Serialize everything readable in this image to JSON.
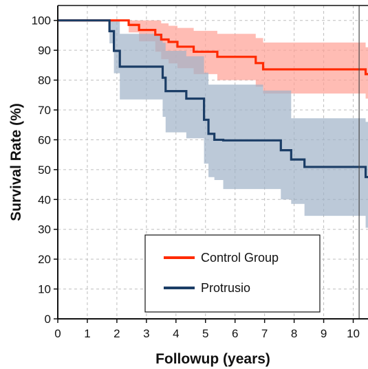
{
  "chart_data": {
    "type": "line",
    "subtype": "kaplan-meier step curves with confidence bands",
    "title": "",
    "xlabel": "Followup (years)",
    "ylabel": "Survival Rate (%)",
    "xlim": [
      0,
      10.5
    ],
    "ylim": [
      0,
      105
    ],
    "xticks": [
      0,
      1,
      2,
      3,
      4,
      5,
      6,
      7,
      8,
      9,
      10
    ],
    "yticks": [
      0,
      10,
      20,
      30,
      40,
      50,
      60,
      70,
      80,
      90,
      100
    ],
    "grid": true,
    "vertical_reference_line_x": 10.2,
    "legend_position": "bottom-center",
    "series": [
      {
        "name": "Control Group",
        "color": "#ff2a00",
        "band_color": "#ff9f94",
        "points": [
          [
            0,
            100
          ],
          [
            1.85,
            100
          ],
          [
            2.4,
            98.5
          ],
          [
            2.75,
            96.8
          ],
          [
            3.3,
            95.2
          ],
          [
            3.5,
            93.6
          ],
          [
            3.75,
            92.8
          ],
          [
            4.05,
            91.2
          ],
          [
            4.6,
            89.5
          ],
          [
            5.4,
            87.8
          ],
          [
            6.7,
            85.7
          ],
          [
            6.95,
            83.6
          ],
          [
            10.4,
            83.6
          ],
          [
            10.42,
            82
          ],
          [
            10.5,
            82
          ]
        ],
        "band_upper": [
          [
            0,
            100
          ],
          [
            1.85,
            100
          ],
          [
            2.4,
            100
          ],
          [
            2.75,
            100
          ],
          [
            3.3,
            100
          ],
          [
            3.5,
            99
          ],
          [
            3.75,
            98.2
          ],
          [
            4.05,
            97.5
          ],
          [
            4.6,
            96.5
          ],
          [
            5.4,
            95.5
          ],
          [
            6.7,
            94.1
          ],
          [
            6.95,
            92.6
          ],
          [
            10.4,
            92.6
          ],
          [
            10.42,
            91
          ],
          [
            10.5,
            91
          ]
        ],
        "band_lower": [
          [
            0,
            100
          ],
          [
            1.85,
            100
          ],
          [
            2.4,
            96
          ],
          [
            2.75,
            93
          ],
          [
            3.3,
            89.5
          ],
          [
            3.5,
            87
          ],
          [
            3.75,
            85.6
          ],
          [
            4.05,
            84
          ],
          [
            4.6,
            82
          ],
          [
            5.4,
            80
          ],
          [
            6.7,
            77.8
          ],
          [
            6.95,
            75.5
          ],
          [
            10.4,
            75.5
          ],
          [
            10.42,
            73.8
          ],
          [
            10.5,
            73.8
          ]
        ]
      },
      {
        "name": "Protrusio",
        "color": "#1b3d66",
        "band_color": "#9fb2c8",
        "points": [
          [
            0,
            100
          ],
          [
            1.6,
            100
          ],
          [
            1.75,
            96.4
          ],
          [
            1.9,
            89.8
          ],
          [
            2.1,
            84.5
          ],
          [
            3.55,
            80.8
          ],
          [
            3.65,
            76.3
          ],
          [
            4.35,
            73.8
          ],
          [
            4.95,
            66.7
          ],
          [
            5.1,
            62
          ],
          [
            5.3,
            60
          ],
          [
            5.6,
            59.8
          ],
          [
            6.95,
            59.8
          ],
          [
            7.55,
            56.5
          ],
          [
            7.9,
            53.4
          ],
          [
            8.35,
            50.9
          ],
          [
            10.4,
            50.9
          ],
          [
            10.42,
            47.5
          ],
          [
            10.5,
            47.5
          ]
        ],
        "band_upper": [
          [
            0,
            100
          ],
          [
            1.6,
            100
          ],
          [
            1.75,
            100
          ],
          [
            1.9,
            100
          ],
          [
            2.1,
            95.5
          ],
          [
            3.55,
            92.5
          ],
          [
            3.65,
            89.8
          ],
          [
            4.35,
            88
          ],
          [
            4.95,
            82.5
          ],
          [
            5.1,
            78.5
          ],
          [
            5.3,
            78.5
          ],
          [
            5.6,
            78.5
          ],
          [
            6.95,
            76.5
          ],
          [
            7.55,
            76.5
          ],
          [
            7.9,
            67.2
          ],
          [
            8.35,
            67.2
          ],
          [
            10.4,
            67.2
          ],
          [
            10.42,
            66
          ],
          [
            10.5,
            66
          ]
        ],
        "band_lower": [
          [
            0,
            100
          ],
          [
            1.6,
            100
          ],
          [
            1.75,
            92.3
          ],
          [
            1.9,
            82.3
          ],
          [
            2.1,
            73.5
          ],
          [
            3.55,
            67.7
          ],
          [
            3.65,
            62.5
          ],
          [
            4.35,
            60.5
          ],
          [
            4.95,
            52
          ],
          [
            5.1,
            47.5
          ],
          [
            5.3,
            46.5
          ],
          [
            5.6,
            43.5
          ],
          [
            6.95,
            43.5
          ],
          [
            7.55,
            40
          ],
          [
            7.9,
            38.5
          ],
          [
            8.35,
            34.5
          ],
          [
            10.4,
            34.5
          ],
          [
            10.42,
            30.5
          ],
          [
            10.5,
            30.5
          ]
        ]
      }
    ]
  }
}
